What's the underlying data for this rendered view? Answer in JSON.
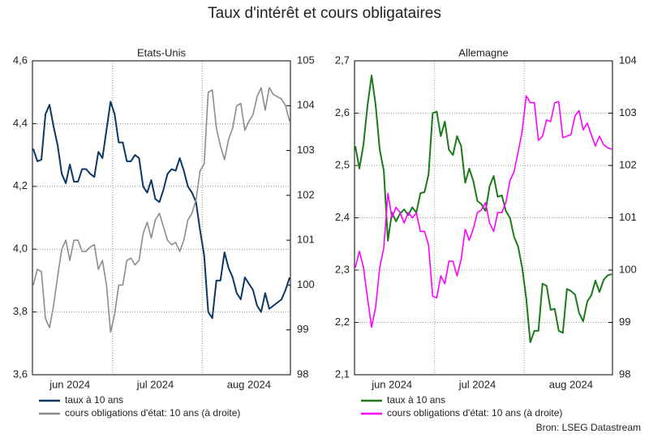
{
  "title": "Taux d'intérêt et cours obligataires",
  "source": "Bron: LSEG Datastream",
  "chart_data": [
    {
      "type": "line",
      "title": "Etats-Unis",
      "categories": [
        null,
        null,
        null,
        null,
        null,
        null,
        null,
        null,
        null,
        "jun 2024",
        null,
        null,
        null,
        null,
        null,
        null,
        null,
        null,
        null,
        null,
        null,
        null,
        null,
        null,
        null,
        null,
        null,
        null,
        null,
        null,
        "jul 2024",
        null,
        null,
        null,
        null,
        null,
        null,
        null,
        null,
        null,
        null,
        null,
        null,
        null,
        null,
        null,
        null,
        null,
        null,
        null,
        null,
        null,
        null,
        "aug 2024",
        null,
        null,
        null,
        null,
        null,
        null,
        null,
        null,
        null,
        null
      ],
      "ylim": [
        3.6,
        4.6
      ],
      "yticks": [
        {
          "value": 3.6,
          "label": "3,6"
        },
        {
          "value": 3.8,
          "label": "3,8"
        },
        {
          "value": 4.0,
          "label": "4,0"
        },
        {
          "value": 4.2,
          "label": "4,2"
        },
        {
          "value": 4.4,
          "label": "4,4"
        },
        {
          "value": 4.6,
          "label": "4,6"
        }
      ],
      "y2lim": [
        98,
        105
      ],
      "y2ticks": [
        98,
        99,
        100,
        101,
        102,
        103,
        104,
        105
      ],
      "grid": true,
      "series": [
        {
          "name": "taux à 10 ans",
          "color": "#0b3763",
          "values": [
            4.32,
            4.28,
            4.285,
            4.43,
            4.46,
            4.39,
            4.33,
            4.24,
            4.21,
            4.27,
            4.215,
            4.215,
            4.255,
            4.255,
            4.24,
            4.23,
            4.31,
            4.29,
            4.38,
            4.47,
            4.43,
            4.34,
            4.34,
            4.28,
            4.28,
            4.3,
            4.29,
            4.2,
            4.18,
            4.22,
            4.16,
            4.15,
            4.19,
            4.24,
            4.255,
            4.25,
            4.29,
            4.25,
            4.2,
            4.18,
            4.15,
            4.06,
            3.98,
            3.8,
            3.78,
            3.9,
            3.9,
            3.99,
            3.94,
            3.91,
            3.86,
            3.84,
            3.91,
            3.89,
            3.87,
            3.82,
            3.8,
            3.86,
            3.81,
            3.82,
            3.83,
            3.84,
            3.87,
            3.91
          ]
        },
        {
          "name": "cours obligations d'état: 10 ans (à droite)",
          "color": "#8c8c8c",
          "axis": "y2",
          "values": [
            100.0,
            100.35,
            100.3,
            99.25,
            99.05,
            99.55,
            100.2,
            100.8,
            101.0,
            100.55,
            101.0,
            101.0,
            100.75,
            100.75,
            100.85,
            100.9,
            100.35,
            100.55,
            100.0,
            98.95,
            99.35,
            100.0,
            100.0,
            100.55,
            100.6,
            100.45,
            100.55,
            101.15,
            101.4,
            101.05,
            101.45,
            101.6,
            101.3,
            101.0,
            100.9,
            100.95,
            100.75,
            101.0,
            101.45,
            101.6,
            101.9,
            102.55,
            102.7,
            104.3,
            104.35,
            103.5,
            103.1,
            102.8,
            103.25,
            103.5,
            104.0,
            104.05,
            103.45,
            103.65,
            103.8,
            104.2,
            104.4,
            103.9,
            104.4,
            104.25,
            104.2,
            104.15,
            104.0,
            103.65
          ]
        }
      ]
    },
    {
      "type": "line",
      "title": "Allemagne",
      "categories": [
        null,
        null,
        null,
        null,
        null,
        null,
        null,
        null,
        null,
        "jun 2024",
        null,
        null,
        null,
        null,
        null,
        null,
        null,
        null,
        null,
        null,
        null,
        null,
        null,
        null,
        null,
        null,
        null,
        null,
        null,
        null,
        "jul 2024",
        null,
        null,
        null,
        null,
        null,
        null,
        null,
        null,
        null,
        null,
        null,
        null,
        null,
        null,
        null,
        null,
        null,
        null,
        null,
        null,
        null,
        null,
        "aug 2024",
        null,
        null,
        null,
        null,
        null,
        null,
        null,
        null,
        null,
        null
      ],
      "ylim": [
        2.1,
        2.7
      ],
      "yticks": [
        {
          "value": 2.1,
          "label": "2,1"
        },
        {
          "value": 2.2,
          "label": "2,2"
        },
        {
          "value": 2.3,
          "label": "2,3"
        },
        {
          "value": 2.4,
          "label": "2,4"
        },
        {
          "value": 2.5,
          "label": "2,5"
        },
        {
          "value": 2.6,
          "label": "2,6"
        },
        {
          "value": 2.7,
          "label": "2,7"
        }
      ],
      "y2lim": [
        98,
        104
      ],
      "y2ticks": [
        98,
        99,
        100,
        101,
        102,
        103,
        104
      ],
      "grid": true,
      "series": [
        {
          "name": "taux à 10 ans",
          "color": "#1c7a1c",
          "values": [
            2.537,
            2.494,
            2.54,
            2.615,
            2.672,
            2.615,
            2.53,
            2.49,
            2.356,
            2.41,
            2.393,
            2.408,
            2.416,
            2.405,
            2.42,
            2.41,
            2.447,
            2.449,
            2.483,
            2.6,
            2.603,
            2.556,
            2.584,
            2.53,
            2.52,
            2.556,
            2.537,
            2.467,
            2.494,
            2.47,
            2.432,
            2.426,
            2.413,
            2.46,
            2.48,
            2.44,
            2.443,
            2.413,
            2.4,
            2.364,
            2.345,
            2.305,
            2.246,
            2.162,
            2.184,
            2.184,
            2.274,
            2.27,
            2.224,
            2.226,
            2.184,
            2.18,
            2.264,
            2.26,
            2.253,
            2.218,
            2.202,
            2.24,
            2.252,
            2.28,
            2.258,
            2.281,
            2.29,
            2.292
          ]
        },
        {
          "name": "cours obligations d'état: 10 ans (à droite)",
          "color": "#ff00ff",
          "axis": "y2",
          "values": [
            100.05,
            100.36,
            100.05,
            99.46,
            98.91,
            99.3,
            100.05,
            100.43,
            101.47,
            101.0,
            101.2,
            101.1,
            100.9,
            101.1,
            101.0,
            101.09,
            100.74,
            100.74,
            100.48,
            99.5,
            99.47,
            99.89,
            99.74,
            100.17,
            100.17,
            99.89,
            100.2,
            100.78,
            100.57,
            100.79,
            101.1,
            101.15,
            101.29,
            100.9,
            100.74,
            101.1,
            101.1,
            101.29,
            101.71,
            101.88,
            102.25,
            102.65,
            103.33,
            103.2,
            103.2,
            102.48,
            102.56,
            102.87,
            102.84,
            103.2,
            103.22,
            102.53,
            102.56,
            102.59,
            102.95,
            103.05,
            102.68,
            102.81,
            102.59,
            102.37,
            102.56,
            102.4,
            102.34,
            102.31
          ]
        }
      ]
    }
  ]
}
